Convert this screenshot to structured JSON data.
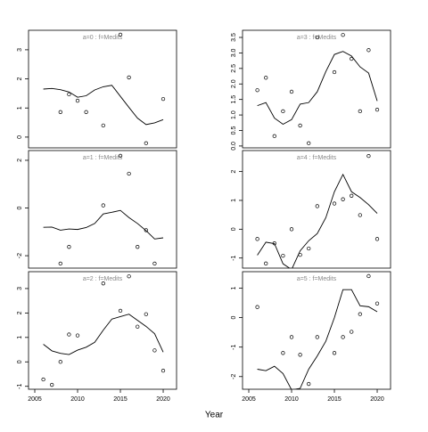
{
  "x_label": "Year",
  "chart_data": [
    {
      "type": "scatter",
      "title": "a=0  :  f=Medits",
      "x": [
        2006,
        2007,
        2008,
        2009,
        2010,
        2011,
        2012,
        2013,
        2014,
        2015,
        2016,
        2017,
        2018,
        2019,
        2020
      ],
      "series": [
        {
          "style": "points",
          "color": "#000000",
          "values": [
            null,
            null,
            0.86,
            1.47,
            1.25,
            0.86,
            null,
            0.4,
            null,
            3.52,
            2.05,
            null,
            -0.21,
            null,
            1.31
          ]
        },
        {
          "style": "line",
          "color": "#000000",
          "values": [
            1.65,
            1.67,
            1.63,
            1.55,
            1.37,
            1.42,
            1.62,
            1.73,
            1.78,
            1.4,
            1.02,
            0.65,
            0.43,
            0.49,
            0.6
          ]
        }
      ],
      "xlim": [
        2004.27,
        2021.56
      ],
      "ylim": [
        -0.37,
        3.67
      ],
      "yticks": [
        0,
        1,
        2,
        3
      ]
    },
    {
      "type": "scatter",
      "title": "a=1  :  f=Medits",
      "x": [
        2006,
        2007,
        2008,
        2009,
        2010,
        2011,
        2012,
        2013,
        2014,
        2015,
        2016,
        2017,
        2018,
        2019,
        2020
      ],
      "series": [
        {
          "style": "points",
          "color": "#000000",
          "values": [
            null,
            null,
            -2.33,
            -1.63,
            null,
            null,
            null,
            0.11,
            null,
            2.19,
            1.44,
            -1.63,
            -0.93,
            -2.33,
            null
          ]
        },
        {
          "style": "line",
          "color": "#000000",
          "values": [
            -0.81,
            -0.8,
            -0.93,
            -0.88,
            -0.9,
            -0.82,
            -0.65,
            -0.25,
            -0.18,
            -0.1,
            -0.4,
            -0.65,
            -0.95,
            -1.3,
            -1.25
          ]
        }
      ],
      "xlim": [
        2004.27,
        2021.56
      ],
      "ylim": [
        -2.52,
        2.41
      ],
      "yticks": [
        -2,
        0,
        2
      ]
    },
    {
      "type": "scatter",
      "title": "a=2  :  f=Medits",
      "x": [
        2006,
        2007,
        2008,
        2009,
        2010,
        2011,
        2012,
        2013,
        2014,
        2015,
        2016,
        2017,
        2018,
        2019,
        2020
      ],
      "series": [
        {
          "style": "points",
          "color": "#000000",
          "values": [
            -0.72,
            -0.94,
            0,
            1.12,
            1.08,
            null,
            null,
            3.21,
            null,
            2.09,
            3.5,
            1.44,
            1.95,
            0.47,
            -0.36
          ]
        },
        {
          "style": "line",
          "color": "#000000",
          "values": [
            0.72,
            0.45,
            0.35,
            0.3,
            0.48,
            0.6,
            0.8,
            1.3,
            1.75,
            1.85,
            1.95,
            1.7,
            1.45,
            1.15,
            0.4
          ]
        }
      ],
      "xlim": [
        2004.27,
        2021.56
      ],
      "ylim": [
        -1.12,
        3.69
      ],
      "yticks": [
        -1,
        0,
        1,
        2,
        3
      ],
      "xticks": [
        2005,
        2010,
        2015,
        2020
      ]
    },
    {
      "type": "scatter",
      "title": "a=3  :  f=Medits",
      "x": [
        2006,
        2007,
        2008,
        2009,
        2010,
        2011,
        2012,
        2013,
        2014,
        2015,
        2016,
        2017,
        2018,
        2019,
        2020
      ],
      "series": [
        {
          "style": "points",
          "color": "#000000",
          "values": [
            1.8,
            2.2,
            0.32,
            1.12,
            1.75,
            0.66,
            0.09,
            3.5,
            null,
            2.38,
            3.58,
            2.81,
            1.12,
            3.09,
            1.17
          ]
        },
        {
          "style": "line",
          "color": "#000000",
          "values": [
            1.3,
            1.4,
            0.9,
            0.7,
            0.85,
            1.35,
            1.4,
            1.75,
            2.4,
            2.95,
            3.05,
            2.9,
            2.55,
            2.35,
            1.45
          ]
        }
      ],
      "xlim": [
        2004.27,
        2021.56
      ],
      "ylim": [
        -0.06,
        3.73
      ],
      "yticks": [
        {
          "value": 0,
          "label": "0.0"
        },
        0.5,
        {
          "value": 1,
          "label": "1.0"
        },
        1.5,
        {
          "value": 2,
          "label": "2.0"
        },
        2.5,
        {
          "value": 3,
          "label": "3.0"
        },
        3.5
      ]
    },
    {
      "type": "scatter",
      "title": "a=4  :  f=Medits",
      "x": [
        2006,
        2007,
        2008,
        2009,
        2010,
        2011,
        2012,
        2013,
        2014,
        2015,
        2016,
        2017,
        2018,
        2019,
        2020
      ],
      "series": [
        {
          "style": "points",
          "color": "#000000",
          "values": [
            -0.34,
            -1.19,
            -0.49,
            -0.92,
            0,
            -0.89,
            -0.67,
            0.8,
            null,
            0.89,
            1.04,
            1.16,
            0.49,
            2.54,
            -0.34
          ]
        },
        {
          "style": "line",
          "color": "#000000",
          "values": [
            -0.9,
            -0.45,
            -0.5,
            -1.2,
            -1.4,
            -0.75,
            -0.4,
            -0.15,
            0.4,
            1.3,
            1.9,
            1.3,
            1.1,
            0.85,
            0.55
          ]
        }
      ],
      "xlim": [
        2004.27,
        2021.56
      ],
      "ylim": [
        -1.35,
        2.73
      ],
      "yticks": [
        -1,
        0,
        1,
        2
      ]
    },
    {
      "type": "scatter",
      "title": "a=5  :  f=Medits",
      "x": [
        2006,
        2007,
        2008,
        2009,
        2010,
        2011,
        2012,
        2013,
        2014,
        2015,
        2016,
        2017,
        2018,
        2019,
        2020
      ],
      "series": [
        {
          "style": "points",
          "color": "#000000",
          "values": [
            0.36,
            null,
            null,
            -1.2,
            -0.66,
            -1.26,
            -2.25,
            -0.66,
            null,
            -1.2,
            -0.66,
            -0.48,
            0.12,
            1.41,
            0.48
          ]
        },
        {
          "style": "line",
          "color": "#000000",
          "values": [
            -1.75,
            -1.8,
            -1.65,
            -1.9,
            -2.45,
            -2.4,
            -1.75,
            -1.3,
            -0.8,
            0,
            0.95,
            0.95,
            0.4,
            0.37,
            0.2
          ]
        }
      ],
      "xlim": [
        2004.27,
        2021.56
      ],
      "ylim": [
        -2.43,
        1.56
      ],
      "yticks": [
        -2,
        -1,
        0,
        1
      ],
      "xticks": [
        2005,
        2010,
        2015,
        2020
      ]
    }
  ]
}
